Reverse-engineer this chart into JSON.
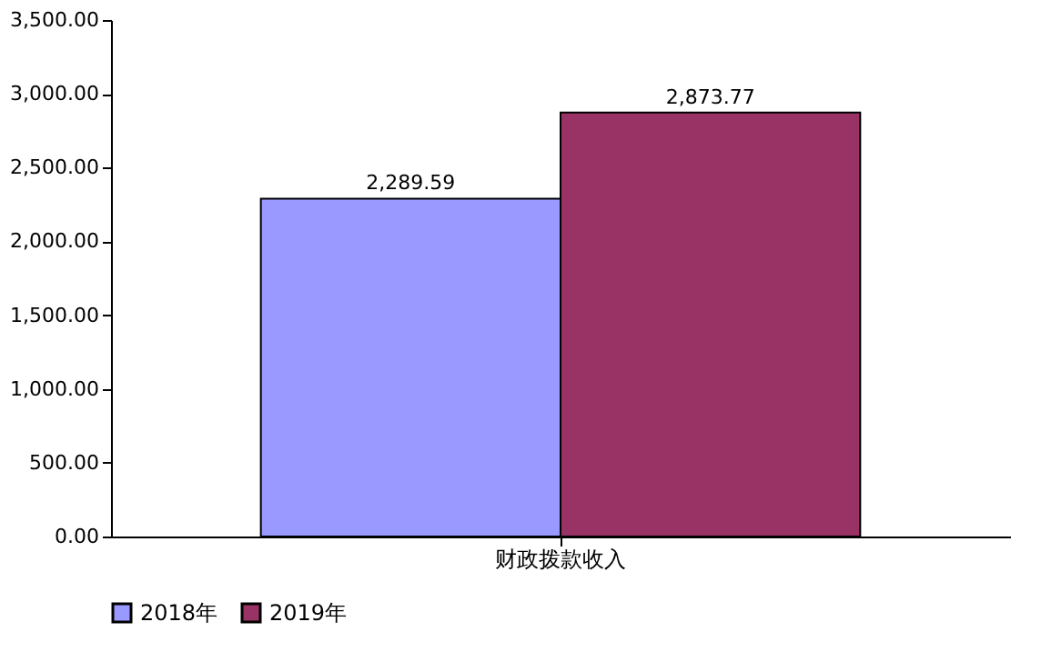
{
  "chart_data": {
    "type": "bar",
    "categories": [
      "财政拨款收入"
    ],
    "series": [
      {
        "name": "2018年",
        "color": "#9999ff",
        "values": [
          2289.59
        ],
        "value_labels": [
          "2,289.59"
        ]
      },
      {
        "name": "2019年",
        "color": "#993366",
        "values": [
          2873.77
        ],
        "value_labels": [
          "2,873.77"
        ]
      }
    ],
    "ylim": [
      0,
      3500
    ],
    "yticks": [
      {
        "value": 0,
        "label": "0.00"
      },
      {
        "value": 500,
        "label": "500.00"
      },
      {
        "value": 1000,
        "label": "1,000.00"
      },
      {
        "value": 1500,
        "label": "1,500.00"
      },
      {
        "value": 2000,
        "label": "2,000.00"
      },
      {
        "value": 2500,
        "label": "2,500.00"
      },
      {
        "value": 3000,
        "label": "3,000.00"
      },
      {
        "value": 3500,
        "label": "3,500.00"
      }
    ],
    "grid": false,
    "legend": "bottom"
  }
}
